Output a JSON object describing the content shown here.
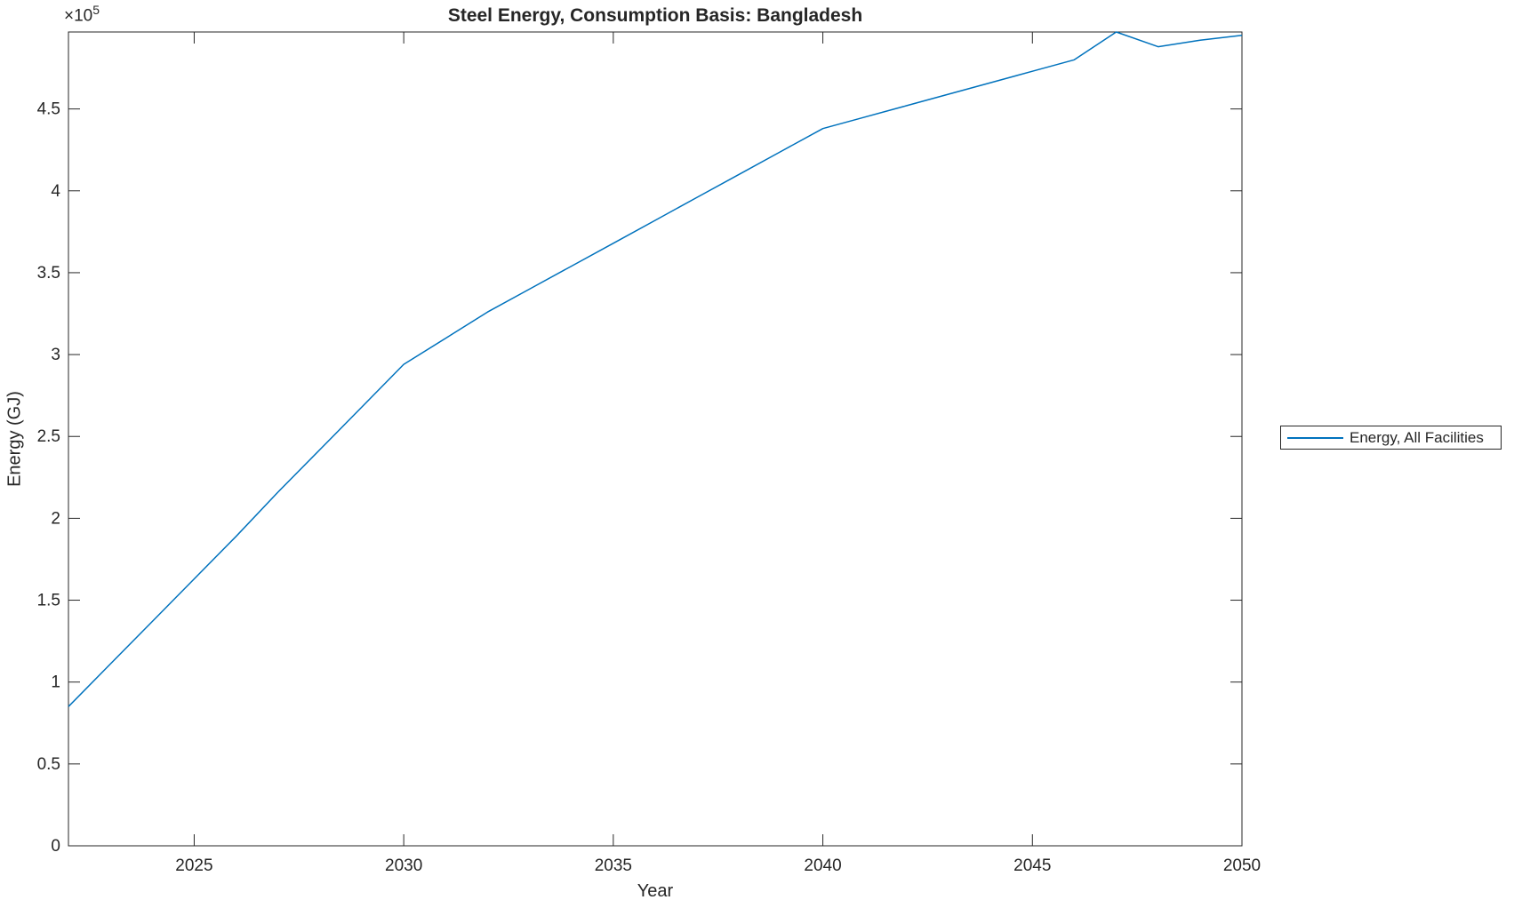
{
  "figure": {
    "background_color": "#ffffff",
    "text_color": "#262626",
    "axis_color": "#262626"
  },
  "chart_data": {
    "type": "line",
    "title": "Steel Energy, Consumption Basis: Bangladesh",
    "xlabel": "Year",
    "ylabel": "Energy (GJ)",
    "y_axis_offset_label": {
      "base": "×10",
      "exponent": "5"
    },
    "grid": false,
    "tick_direction": "in",
    "box": true,
    "xlim": [
      2022,
      2050
    ],
    "ylim": [
      0,
      497000
    ],
    "x_ticks": [
      2025,
      2030,
      2035,
      2040,
      2045,
      2050
    ],
    "x_tick_labels": [
      "2025",
      "2030",
      "2035",
      "2040",
      "2045",
      "2050"
    ],
    "y_ticks": [
      0,
      50000,
      100000,
      150000,
      200000,
      250000,
      300000,
      350000,
      400000,
      450000
    ],
    "y_tick_labels": [
      "0",
      "0.5",
      "1",
      "1.5",
      "2",
      "2.5",
      "3",
      "3.5",
      "4",
      "4.5"
    ],
    "x": [
      2022,
      2023,
      2024,
      2025,
      2026,
      2027,
      2028,
      2029,
      2030,
      2031,
      2032,
      2033,
      2034,
      2035,
      2036,
      2037,
      2038,
      2039,
      2040,
      2041,
      2042,
      2043,
      2044,
      2045,
      2046,
      2047,
      2048,
      2049,
      2050
    ],
    "series": [
      {
        "name": "Energy, All Facilities",
        "color": "#0072BD",
        "values_gj": [
          85000,
          111000,
          137000,
          163000,
          189000,
          216000,
          242000,
          268000,
          294000,
          310000,
          326000,
          340000,
          354000,
          368000,
          382000,
          396000,
          410000,
          424000,
          438000,
          445000,
          452000,
          459000,
          466000,
          473000,
          480000,
          497000,
          488000,
          492000,
          495000
        ]
      }
    ],
    "legend_position": "right-outside"
  },
  "legend": {
    "entries": [
      {
        "label": "Energy, All Facilities",
        "color": "#0072BD"
      }
    ]
  }
}
